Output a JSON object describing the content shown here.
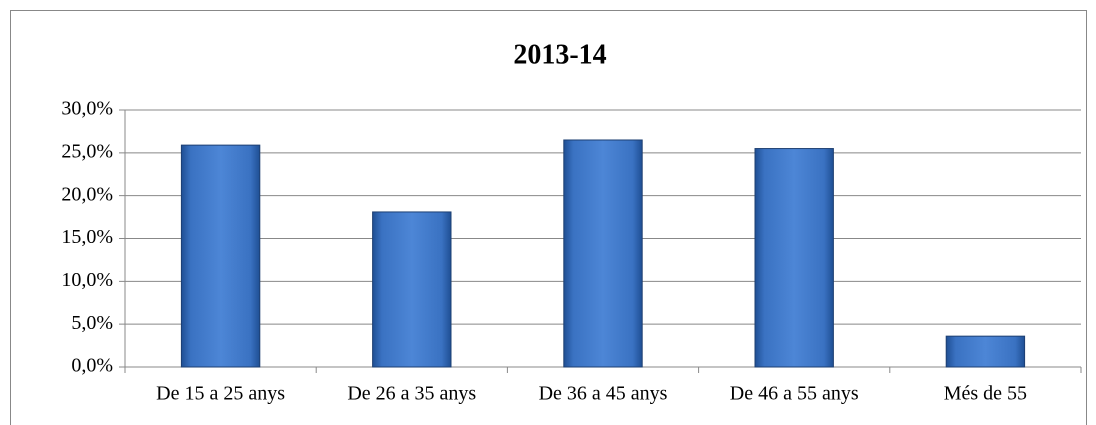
{
  "chart_data": {
    "type": "bar",
    "title": "2013-14",
    "categories": [
      "De 15 a 25 anys",
      "De 26 a 35 anys",
      "De 36 a 45 anys",
      "De 46 a 55 anys",
      "Més de 55"
    ],
    "values": [
      25.9,
      18.1,
      26.5,
      25.5,
      3.6
    ],
    "color": "#3f77c6",
    "ylim": [
      0,
      30
    ],
    "yticks": [
      {
        "value": 0,
        "label": "0,0%"
      },
      {
        "value": 5,
        "label": "5,0%"
      },
      {
        "value": 10,
        "label": "10,0%"
      },
      {
        "value": 15,
        "label": "15,0%"
      },
      {
        "value": 20,
        "label": "20,0%"
      },
      {
        "value": 25,
        "label": "25,0%"
      },
      {
        "value": 30,
        "label": "30,0%"
      }
    ],
    "grid": true
  }
}
